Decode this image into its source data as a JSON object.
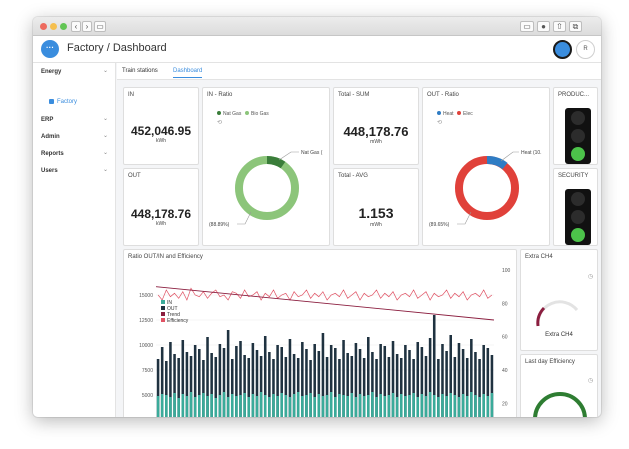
{
  "app": {
    "title": "Factory / Dashboard",
    "menu_glyph": "···",
    "avatar_label": "R"
  },
  "sidebar": {
    "items": [
      {
        "label": "Energy"
      },
      {
        "label": "ERP"
      },
      {
        "label": "Admin"
      },
      {
        "label": "Reports"
      },
      {
        "label": "Users"
      }
    ],
    "sub_item": "Factory",
    "chevron": "⌄"
  },
  "tabs": [
    {
      "label": "Train stations"
    },
    {
      "label": "Dashboard"
    }
  ],
  "cards": {
    "in": {
      "title": "IN",
      "value": "452,046.95",
      "unit": "kWh"
    },
    "out": {
      "title": "OUT",
      "value": "448,178.76",
      "unit": "kWh"
    },
    "in_ratio": {
      "title": "IN - Ratio",
      "legend": [
        "Nat Gas",
        "Bio Gas"
      ],
      "callout_small": "Nat Gas (",
      "callout_big": "(88.89%)",
      "colors": {
        "bio": "#8cc57a",
        "nat": "#3a7d3a"
      }
    },
    "total_sum": {
      "title": "Total - SUM",
      "value": "448,178.76",
      "unit": "mWh"
    },
    "total_avg": {
      "title": "Total - AVG",
      "value": "1.153",
      "unit": "mWh"
    },
    "out_ratio": {
      "title": "OUT - Ratio",
      "legend": [
        "Heat",
        "Elec"
      ],
      "callout_small": "Heat (10.",
      "callout_big": "(89.65%)",
      "colors": {
        "elec": "#e0413a",
        "heat": "#2f7cc4"
      }
    },
    "production": {
      "title": "PRODUC..."
    },
    "security": {
      "title": "SECURITY"
    },
    "extra_ch4": {
      "title": "Extra CH4",
      "label": "Extra CH4"
    },
    "last_day": {
      "title": "Last day Efficiency"
    }
  },
  "chart_data": {
    "type": "bar",
    "title": "Ratio OUT/IN and Efficiency",
    "legend": [
      "IN",
      "OUT",
      "Trend",
      "Efficiency"
    ],
    "colors": {
      "in": "#3aab9a",
      "out": "#1f3240",
      "trend": "#8b1e3f",
      "efficiency": "#e05264"
    },
    "y_left": {
      "ticks": [
        "5000",
        "7500",
        "10000",
        "12500",
        "15000"
      ],
      "range": [
        2500,
        17500
      ]
    },
    "y_right": {
      "ticks": [
        "20",
        "40",
        "60",
        "80",
        "100"
      ],
      "range": [
        10,
        100
      ]
    },
    "in_values": [
      4900,
      5100,
      5000,
      4800,
      5200,
      4700,
      5100,
      4900,
      5300,
      4800,
      5000,
      5200,
      4900,
      5100,
      4700,
      5000,
      5300,
      4800,
      5100,
      4900,
      5000,
      5200,
      4800,
      5100,
      4900,
      5300,
      5000,
      4800,
      5100,
      4900,
      5200,
      5000,
      4800,
      5100,
      5300,
      4900,
      5000,
      5200,
      4800,
      5100,
      4900,
      5000,
      5300,
      4800,
      5100,
      5000,
      4900,
      5200,
      4800,
      5100,
      4900,
      5000,
      5300,
      4800,
      5100,
      4900,
      5000,
      5200,
      4800,
      5100,
      4900,
      5000,
      5200,
      4800,
      5100,
      4900,
      5300,
      5000,
      4800,
      5100,
      4900,
      5200,
      5000,
      4800,
      5100,
      4900,
      5300,
      5000,
      4800,
      5100,
      4900,
      5200
    ],
    "out_values": [
      8600,
      9800,
      8400,
      10300,
      9100,
      8700,
      10500,
      9300,
      8900,
      10000,
      9600,
      8500,
      10800,
      9200,
      8800,
      10100,
      9700,
      11500,
      8600,
      9900,
      10400,
      9000,
      8700,
      10200,
      9500,
      8900,
      10900,
      9300,
      8600,
      10000,
      9800,
      8800,
      10600,
      9100,
      8700,
      10300,
      9600,
      8500,
      10100,
      9400,
      11200,
      8800,
      10000,
      9700,
      8600,
      10500,
      9200,
      8900,
      10200,
      9600,
      8700,
      10800,
      9300,
      8600,
      10100,
      9900,
      8800,
      10400,
      9100,
      8700,
      10000,
      9500,
      8600,
      10300,
      9800,
      8900,
      10700,
      13000,
      8600,
      10100,
      9400,
      11000,
      8800,
      10200,
      9600,
      8700,
      10600,
      9300,
      8600,
      10000,
      9700,
      9000
    ],
    "efficiency": [
      85,
      82,
      88,
      84,
      86,
      83,
      87,
      82,
      89,
      85,
      84,
      87,
      83,
      86,
      88,
      84,
      85,
      82,
      87,
      86,
      83,
      88,
      84,
      85,
      87,
      82,
      86,
      84,
      88,
      83,
      85,
      86,
      82,
      87,
      84,
      85,
      88,
      83,
      86,
      84,
      87,
      82,
      85,
      86,
      84,
      88,
      83,
      85,
      87,
      82,
      86,
      84,
      85,
      88,
      83,
      86,
      84,
      87,
      82,
      85,
      86,
      84,
      88,
      83,
      85,
      87,
      82,
      86,
      84,
      85,
      88,
      83,
      86,
      84,
      87,
      82,
      85,
      86,
      84,
      88,
      83,
      85
    ],
    "trend": [
      90,
      70
    ]
  }
}
